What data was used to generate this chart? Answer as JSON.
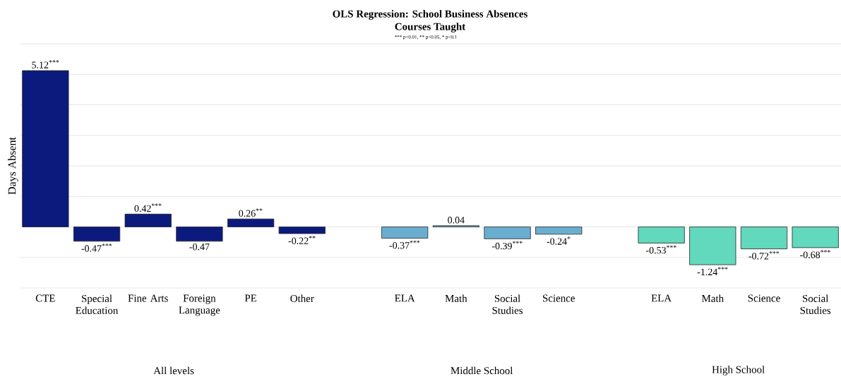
{
  "chart_data": {
    "type": "bar",
    "title": "OLS Regression: School Business Absences",
    "subtitle": "Courses Taught",
    "ylabel": "Days Absent",
    "annotations": [
      "*** p<0.01, ** p<0.05, * p<0.1",
      "All levels",
      "Middle School",
      "High School"
    ],
    "categories": [
      "CTE",
      "Special Education",
      "Fine Arts",
      "Foreign Language",
      "PE",
      "Other",
      null,
      "ELA",
      "Math",
      "Social Studies",
      "Science",
      null,
      "ELA",
      "Math",
      "Science",
      "Social Studies"
    ],
    "values": [
      5.12,
      -0.47,
      0.42,
      -0.47,
      0.26,
      -0.22,
      null,
      -0.37,
      0.04,
      -0.39,
      -0.24,
      null,
      -0.53,
      -1.24,
      -0.72,
      -0.68
    ],
    "value_labels": [
      "5.12$^{***}$",
      "-0.47$^{***}$",
      "0.42$^{***}$",
      "-0.47",
      "0.26$^{**}$",
      "-0.22$^{**}$",
      null,
      "-0.37$^{***}$",
      "0.04",
      "-0.39$^{***}$",
      "-0.24$^{*}$",
      null,
      "-0.53$^{***}$",
      "-1.24$^{***}$",
      "-0.72$^{***}$",
      "-0.68$^{***}$"
    ],
    "colors": [
      "#0b1a7c",
      "#0b1a7c",
      "#0b1a7c",
      "#0b1a7c",
      "#0b1a7c",
      "#0b1a7c",
      null,
      "#6aaecf",
      "#6aaecf",
      "#6aaecf",
      "#6aaecf",
      null,
      "#62d8bc",
      "#62d8bc",
      "#62d8bc",
      "#62d8bc"
    ],
    "ylim": [
      -2,
      6
    ],
    "yticks": [
      {
        "value": -2,
        "label": null
      },
      {
        "value": -1,
        "label": null
      },
      {
        "value": 0,
        "label": null
      },
      {
        "value": 1,
        "label": null
      },
      {
        "value": 2,
        "label": null
      },
      {
        "value": 3,
        "label": null
      },
      {
        "value": 4,
        "label": null
      },
      {
        "value": 5,
        "label": null
      },
      {
        "value": 6,
        "label": null
      }
    ],
    "tick_labels": "x",
    "grid": "y"
  }
}
